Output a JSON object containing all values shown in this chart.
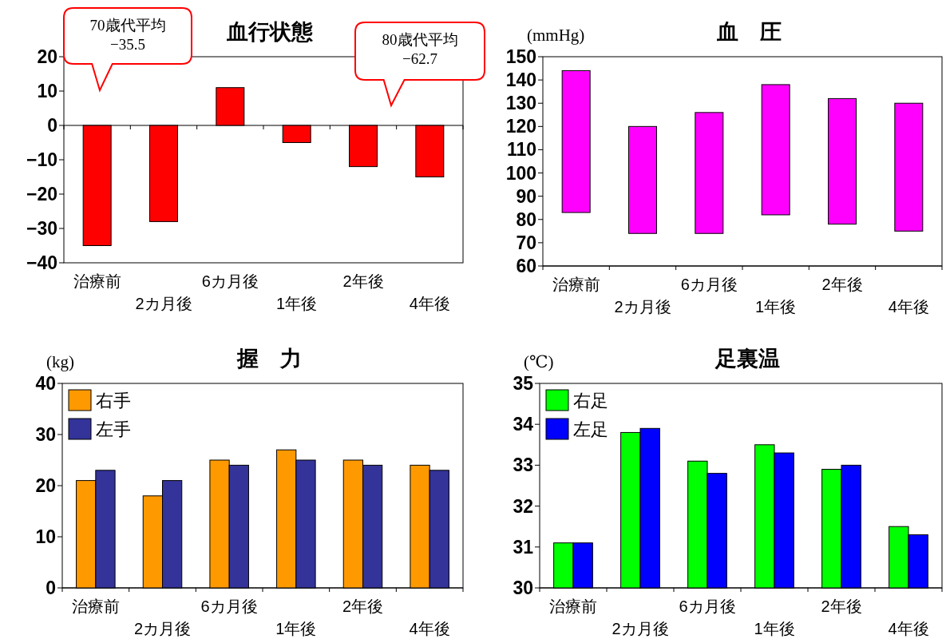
{
  "chart_data": [
    {
      "type": "bar",
      "title": "血行状態",
      "categories": [
        "治療前",
        "2カ月後",
        "6カ月後",
        "1年後",
        "2年後",
        "4年後"
      ],
      "values": [
        -35,
        -28,
        11,
        -5,
        -12,
        -15
      ],
      "color": "#ff0000",
      "ylim": [
        -40,
        20
      ],
      "yticks": [
        -40,
        -30,
        -20,
        -10,
        0,
        10,
        20
      ],
      "annotations": [
        "70歳代平均\n−35.5",
        "80歳代平均\n−62.7"
      ]
    },
    {
      "type": "bar",
      "title": "血　圧",
      "ylabel": "(mmHg)",
      "categories": [
        "治療前",
        "2カ月後",
        "6カ月後",
        "1年後",
        "2年後",
        "4年後"
      ],
      "base": [
        83,
        74,
        74,
        82,
        78,
        75
      ],
      "values": [
        61,
        46,
        52,
        56,
        54,
        55
      ],
      "color": "#ff00ff",
      "ylim": [
        60,
        150
      ],
      "yticks": [
        60,
        70,
        80,
        90,
        100,
        110,
        120,
        130,
        140,
        150
      ]
    },
    {
      "type": "bar",
      "title": "握　力",
      "ylabel": "(kg)",
      "categories": [
        "治療前",
        "2カ月後",
        "6カ月後",
        "1年後",
        "2年後",
        "4年後"
      ],
      "ylim": [
        0,
        40
      ],
      "yticks": [
        0,
        10,
        20,
        30,
        40
      ],
      "legend": "top left",
      "series": [
        {
          "name": "右手",
          "color": "#ff9900",
          "values": [
            21,
            18,
            25,
            27,
            25,
            24
          ]
        },
        {
          "name": "左手",
          "color": "#333399",
          "values": [
            23,
            21,
            24,
            25,
            24,
            23
          ]
        }
      ]
    },
    {
      "type": "bar",
      "title": "足裏温",
      "ylabel": "(℃)",
      "categories": [
        "治療前",
        "2カ月後",
        "6カ月後",
        "1年後",
        "2年後",
        "4年後"
      ],
      "ylim": [
        30,
        35
      ],
      "yticks": [
        30,
        31,
        32,
        33,
        34,
        35
      ],
      "legend": "top left",
      "series": [
        {
          "name": "右足",
          "color": "#00ff00",
          "values": [
            31.1,
            33.8,
            33.1,
            33.5,
            32.9,
            31.5
          ]
        },
        {
          "name": "左足",
          "color": "#0000ff",
          "values": [
            31.1,
            33.9,
            32.8,
            33.3,
            33.0,
            31.3
          ]
        }
      ]
    }
  ]
}
